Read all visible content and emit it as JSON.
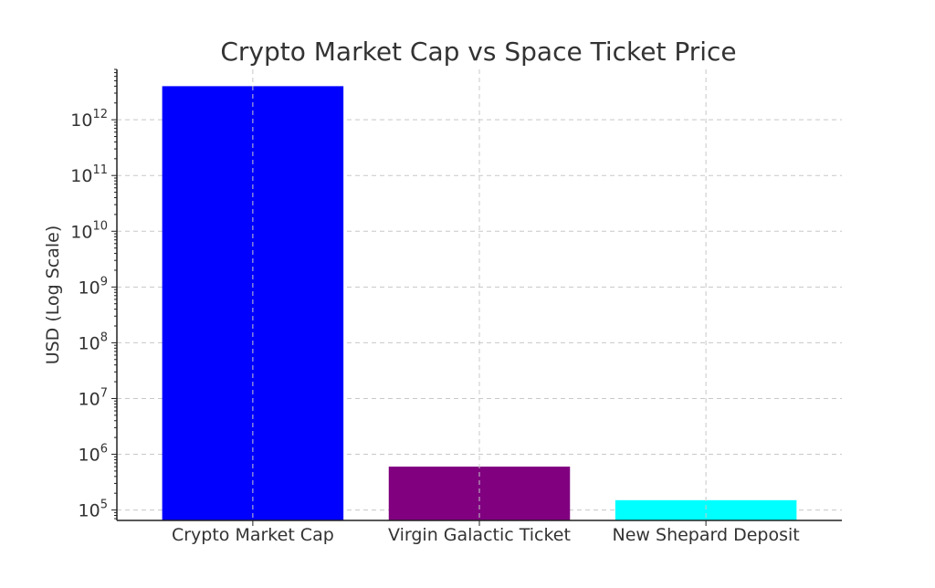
{
  "chart_data": {
    "type": "bar",
    "title": "Crypto Market Cap vs Space Ticket Price",
    "xlabel": "",
    "ylabel": "USD (Log Scale)",
    "yscale": "log",
    "ylim": [
      65000,
      8000000000000
    ],
    "categories": [
      "Crypto Market Cap",
      "Virgin Galactic Ticket",
      "New Shepard Deposit"
    ],
    "values": [
      4000000000000,
      600000,
      150000
    ],
    "colors": [
      "#0000ff",
      "#800080",
      "#00ffff"
    ],
    "yticks": [
      {
        "value": 100000,
        "base": "10",
        "exp": "5"
      },
      {
        "value": 1000000,
        "base": "10",
        "exp": "6"
      },
      {
        "value": 10000000,
        "base": "10",
        "exp": "7"
      },
      {
        "value": 100000000,
        "base": "10",
        "exp": "8"
      },
      {
        "value": 1000000000,
        "base": "10",
        "exp": "9"
      },
      {
        "value": 10000000000,
        "base": "10",
        "exp": "10"
      },
      {
        "value": 100000000000,
        "base": "10",
        "exp": "11"
      },
      {
        "value": 1000000000000,
        "base": "10",
        "exp": "12"
      }
    ],
    "grid": true
  }
}
